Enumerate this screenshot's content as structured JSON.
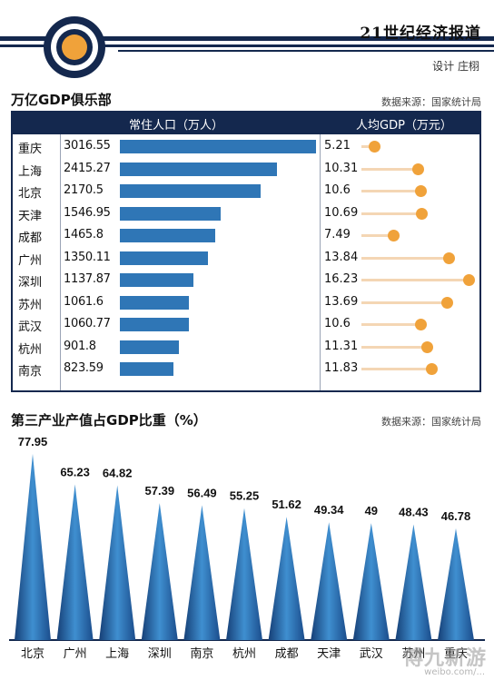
{
  "header": {
    "title": "21世纪经济报道",
    "credit": "设计 庄栩"
  },
  "section1": {
    "title": "万亿GDP俱乐部",
    "source": "数据来源：国家统计局",
    "col_population": "常住人口（万人）",
    "col_gdp": "人均GDP（万元）"
  },
  "section2": {
    "title": "第三产业产值占GDP比重（%）",
    "source": "数据来源：国家统计局"
  },
  "colors": {
    "navy": "#14284e",
    "bar_blue": "#2f76b6",
    "dot_orange": "#f0a23a",
    "stick_peach": "#f4d6b4"
  },
  "watermark": {
    "text": "傅九新游",
    "url": "weibo.com/..."
  },
  "chart_data": [
    {
      "type": "bar",
      "orientation": "horizontal",
      "categories": [
        "重庆",
        "上海",
        "北京",
        "天津",
        "成都",
        "广州",
        "深圳",
        "苏州",
        "武汉",
        "杭州",
        "南京"
      ],
      "values": [
        3016.55,
        2415.27,
        2170.5,
        1546.95,
        1465.8,
        1350.11,
        1137.87,
        1061.6,
        1060.77,
        901.8,
        823.59
      ],
      "labels": [
        "3016.55",
        "2415.27",
        "2170.5",
        "1546.95",
        "1465.8",
        "1350.11",
        "1137.87",
        "1061.6",
        "1060.77",
        "901.8",
        "823.59"
      ],
      "title": "常住人口（万人）"
    },
    {
      "type": "lollipop",
      "orientation": "horizontal",
      "categories": [
        "重庆",
        "上海",
        "北京",
        "天津",
        "成都",
        "广州",
        "深圳",
        "苏州",
        "武汉",
        "杭州",
        "南京"
      ],
      "values": [
        5.21,
        10.31,
        10.6,
        10.69,
        7.49,
        13.84,
        16.23,
        13.69,
        10.6,
        11.31,
        11.83
      ],
      "labels": [
        "5.21",
        "10.31",
        "10.6",
        "10.69",
        "7.49",
        "13.84",
        "16.23",
        "13.69",
        "10.6",
        "11.31",
        "11.83"
      ],
      "title": "人均GDP（万元）"
    },
    {
      "type": "bar",
      "style": "triangle",
      "categories": [
        "北京",
        "广州",
        "上海",
        "深圳",
        "南京",
        "杭州",
        "成都",
        "天津",
        "武汉",
        "苏州",
        "重庆"
      ],
      "values": [
        77.95,
        65.23,
        64.82,
        57.39,
        56.49,
        55.25,
        51.62,
        49.34,
        49,
        48.43,
        46.78
      ],
      "labels": [
        "77.95",
        "65.23",
        "64.82",
        "57.39",
        "56.49",
        "55.25",
        "51.62",
        "49.34",
        "49",
        "48.43",
        "46.78"
      ],
      "title": "第三产业产值占GDP比重（%）",
      "ylim": [
        0,
        80
      ]
    }
  ]
}
